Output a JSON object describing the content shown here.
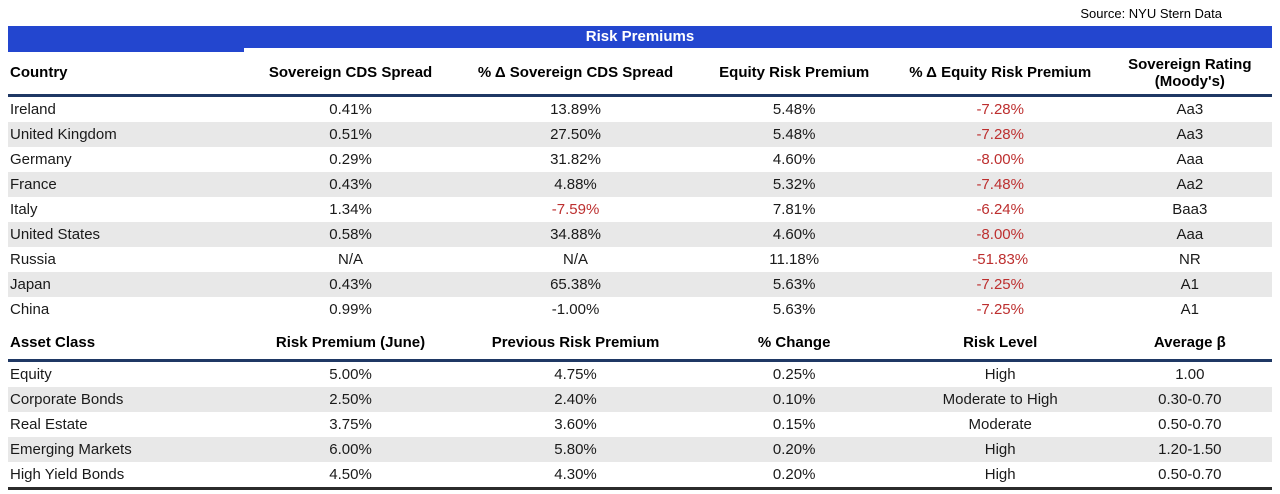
{
  "source_note": "Source: NYU Stern Data",
  "title": "Risk Premiums",
  "colors": {
    "accent-blue": "#2346cf",
    "navy-line": "#1f3864",
    "stripe-gray": "#e8e8e8",
    "neg-red": "#bd2f2f"
  },
  "country_table": {
    "columns": [
      "Country",
      "Sovereign CDS Spread",
      "% Δ Sovereign CDS Spread",
      "Equity Risk Premium",
      "% Δ Equity Risk Premium",
      "Sovereign Rating (Moody's)"
    ],
    "rows": [
      {
        "cells": [
          {
            "text": "Ireland"
          },
          {
            "text": "0.41%"
          },
          {
            "text": "13.89%"
          },
          {
            "text": "5.48%"
          },
          {
            "text": "-7.28%",
            "red": true
          },
          {
            "text": "Aa3"
          }
        ]
      },
      {
        "cells": [
          {
            "text": "United Kingdom"
          },
          {
            "text": "0.51%"
          },
          {
            "text": "27.50%"
          },
          {
            "text": "5.48%"
          },
          {
            "text": "-7.28%",
            "red": true
          },
          {
            "text": "Aa3"
          }
        ]
      },
      {
        "cells": [
          {
            "text": "Germany"
          },
          {
            "text": "0.29%"
          },
          {
            "text": "31.82%"
          },
          {
            "text": "4.60%"
          },
          {
            "text": "-8.00%",
            "red": true
          },
          {
            "text": "Aaa"
          }
        ]
      },
      {
        "cells": [
          {
            "text": "France"
          },
          {
            "text": "0.43%"
          },
          {
            "text": "4.88%"
          },
          {
            "text": "5.32%"
          },
          {
            "text": "-7.48%",
            "red": true
          },
          {
            "text": "Aa2"
          }
        ]
      },
      {
        "cells": [
          {
            "text": "Italy"
          },
          {
            "text": "1.34%"
          },
          {
            "text": "-7.59%",
            "red": true
          },
          {
            "text": "7.81%"
          },
          {
            "text": "-6.24%",
            "red": true
          },
          {
            "text": "Baa3"
          }
        ]
      },
      {
        "cells": [
          {
            "text": "United States"
          },
          {
            "text": "0.58%"
          },
          {
            "text": "34.88%"
          },
          {
            "text": "4.60%"
          },
          {
            "text": "-8.00%",
            "red": true
          },
          {
            "text": "Aaa"
          }
        ]
      },
      {
        "cells": [
          {
            "text": "Russia"
          },
          {
            "text": "N/A"
          },
          {
            "text": "N/A"
          },
          {
            "text": "11.18%"
          },
          {
            "text": "-51.83%",
            "red": true
          },
          {
            "text": "NR"
          }
        ]
      },
      {
        "cells": [
          {
            "text": "Japan"
          },
          {
            "text": "0.43%"
          },
          {
            "text": "65.38%"
          },
          {
            "text": "5.63%"
          },
          {
            "text": "-7.25%",
            "red": true
          },
          {
            "text": "A1"
          }
        ]
      },
      {
        "cells": [
          {
            "text": "China"
          },
          {
            "text": "0.99%"
          },
          {
            "text": "-1.00%"
          },
          {
            "text": "5.63%"
          },
          {
            "text": "-7.25%",
            "red": true
          },
          {
            "text": "A1"
          }
        ]
      }
    ]
  },
  "asset_table": {
    "columns": [
      "Asset Class",
      "Risk Premium (June)",
      "Previous Risk Premium",
      "% Change",
      "Risk Level",
      "Average β"
    ],
    "rows": [
      {
        "cells": [
          {
            "text": "Equity"
          },
          {
            "text": "5.00%"
          },
          {
            "text": "4.75%"
          },
          {
            "text": "0.25%"
          },
          {
            "text": "High"
          },
          {
            "text": "1.00"
          }
        ]
      },
      {
        "cells": [
          {
            "text": "Corporate Bonds"
          },
          {
            "text": "2.50%"
          },
          {
            "text": "2.40%"
          },
          {
            "text": "0.10%"
          },
          {
            "text": "Moderate to High"
          },
          {
            "text": "0.30-0.70"
          }
        ]
      },
      {
        "cells": [
          {
            "text": "Real Estate"
          },
          {
            "text": "3.75%"
          },
          {
            "text": "3.60%"
          },
          {
            "text": "0.15%"
          },
          {
            "text": "Moderate"
          },
          {
            "text": "0.50-0.70"
          }
        ]
      },
      {
        "cells": [
          {
            "text": "Emerging Markets"
          },
          {
            "text": "6.00%"
          },
          {
            "text": "5.80%"
          },
          {
            "text": "0.20%"
          },
          {
            "text": "High"
          },
          {
            "text": "1.20-1.50"
          }
        ]
      },
      {
        "cells": [
          {
            "text": "High Yield Bonds"
          },
          {
            "text": "4.50%"
          },
          {
            "text": "4.30%"
          },
          {
            "text": "0.20%"
          },
          {
            "text": "High"
          },
          {
            "text": "0.50-0.70"
          }
        ]
      }
    ]
  }
}
